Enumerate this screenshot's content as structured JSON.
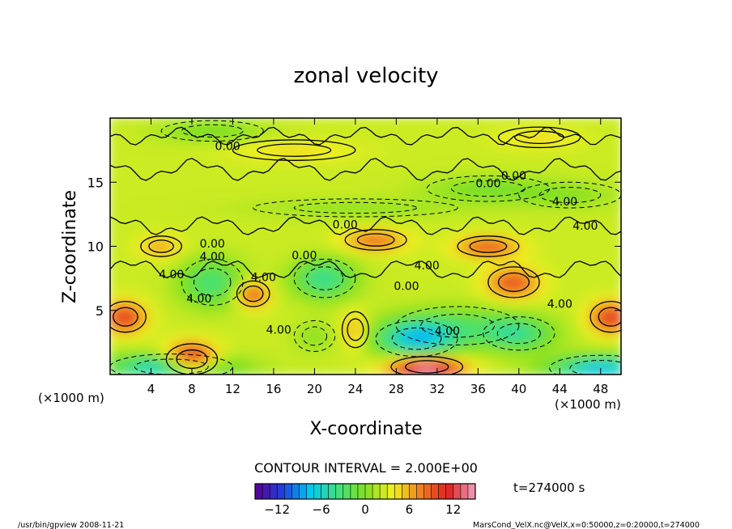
{
  "chart_data": {
    "type": "heatmap",
    "title": "zonal velocity",
    "xlabel": "X-coordinate",
    "ylabel": "Z-coordinate",
    "x_unit_left": "(×1000 m)",
    "x_unit_right": "(×1000 m)",
    "z_unit": "(×1000 m)",
    "xlim": [
      0,
      50
    ],
    "ylim": [
      0,
      20
    ],
    "x_ticks": [
      4,
      8,
      12,
      16,
      20,
      24,
      28,
      32,
      36,
      40,
      44,
      48
    ],
    "y_ticks": [
      5,
      10,
      15
    ],
    "contour_interval_label": "CONTOUR INTERVAL = 2.000E+00",
    "contour_labels": [
      "0.00",
      "0.00",
      "0.00",
      "0.00",
      "4.00",
      "4.00",
      "4.00",
      "4.00",
      "4.00",
      "4.00",
      "4.00",
      "0.00",
      "4.00",
      "4.00",
      "4.00",
      "0.00",
      "0.00"
    ],
    "colorbar": {
      "min": -15,
      "max": 15,
      "ticks": [
        -12,
        -6,
        0,
        6,
        12
      ],
      "tick_labels": [
        "−12",
        "−6",
        "0",
        "6",
        "12"
      ]
    },
    "time_label": "t=274000 s",
    "grid": false,
    "legend": "colorbar-bottom"
  },
  "footer": {
    "left": "/usr/bin/gpview  2008-11-21",
    "right": "MarsCond_VelX.nc@VelX,x=0:50000,z=0:20000,t=274000"
  },
  "colors": {
    "jet_stops": [
      "#5a0090",
      "#2040e0",
      "#00c8f0",
      "#40e080",
      "#80e020",
      "#f0f020",
      "#f08020",
      "#e02020",
      "#f0a0c0"
    ]
  }
}
